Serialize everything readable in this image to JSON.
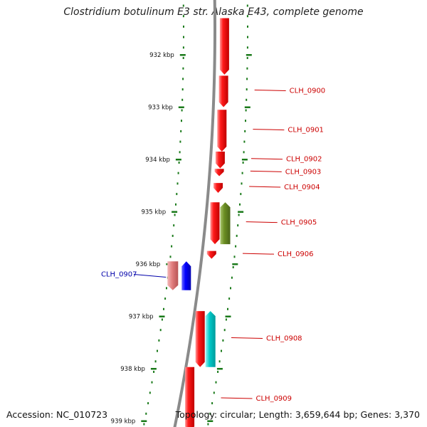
{
  "title": "Clostridium botulinum E3 str. Alaska E43, complete genome",
  "footer": {
    "accession": "Accession: NC_010723",
    "topology": "Topology: circular; Length: 3,659,644 bp; Genes: 3,370"
  },
  "colors": {
    "backbone": "#888888",
    "tick": "#1a7a1a",
    "label_red": "#cc0000",
    "label_blue": "#0000aa",
    "gene_red": "#ff0000",
    "gene_olive": "#6b8e23",
    "gene_cyan": "#00c8c8",
    "gene_pink": "#e08080",
    "gene_blue": "#0000ff"
  },
  "ruler": {
    "unit": "kbp",
    "labels": [
      "932 kbp",
      "933 kbp",
      "934 kbp",
      "935 kbp",
      "936 kbp",
      "937 kbp",
      "938 kbp",
      "939 kbp"
    ]
  },
  "genes": [
    {
      "name": "",
      "strand": "-",
      "track": "inner-right",
      "color": "red",
      "start_kbp": 931.3,
      "end_kbp": 932.38
    },
    {
      "name": "CLH_0900",
      "strand": "-",
      "track": "inner-right",
      "color": "red",
      "start_kbp": 932.4,
      "end_kbp": 933.0
    },
    {
      "name": "CLH_0901",
      "strand": "-",
      "track": "inner-right",
      "color": "red",
      "start_kbp": 933.05,
      "end_kbp": 933.85
    },
    {
      "name": "CLH_0902",
      "strand": "-",
      "track": "inner-right",
      "color": "red",
      "start_kbp": 933.85,
      "end_kbp": 934.17
    },
    {
      "name": "CLH_0903",
      "strand": "-",
      "track": "inner-right",
      "color": "red",
      "start_kbp": 934.18,
      "end_kbp": 934.32
    },
    {
      "name": "CLH_0904",
      "strand": "-",
      "track": "inner-right",
      "color": "red",
      "start_kbp": 934.45,
      "end_kbp": 934.64
    },
    {
      "name": "CLH_0905",
      "strand": "+",
      "track": "outer-right",
      "color": "olive",
      "start_kbp": 934.82,
      "end_kbp": 935.62
    },
    {
      "name": "",
      "strand": "-",
      "track": "inner-right",
      "color": "red",
      "start_kbp": 934.82,
      "end_kbp": 935.62
    },
    {
      "name": "CLH_0906",
      "strand": "-",
      "track": "inner-right",
      "color": "red",
      "start_kbp": 935.75,
      "end_kbp": 935.9
    },
    {
      "name": "CLH_0907",
      "strand": "-",
      "track": "outer-left",
      "color": "pink",
      "start_kbp": 935.95,
      "end_kbp": 936.5
    },
    {
      "name": "",
      "strand": "+",
      "track": "inner-left",
      "color": "blue",
      "start_kbp": 935.95,
      "end_kbp": 936.5
    },
    {
      "name": "",
      "strand": "-",
      "track": "inner-right",
      "color": "red",
      "start_kbp": 936.9,
      "end_kbp": 937.97
    },
    {
      "name": "CLH_0908",
      "strand": "+",
      "track": "outer-right",
      "color": "cyan",
      "start_kbp": 936.9,
      "end_kbp": 937.97
    },
    {
      "name": "CLH_0909",
      "strand": "-",
      "track": "inner-right",
      "color": "red",
      "start_kbp": 937.97,
      "end_kbp": 939.2
    }
  ]
}
